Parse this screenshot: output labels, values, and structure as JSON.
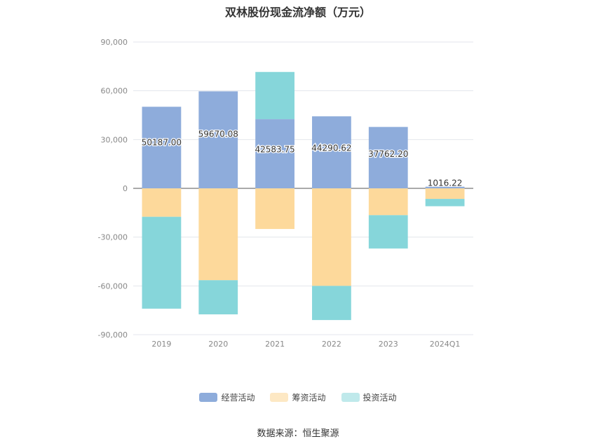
{
  "chart_data": {
    "type": "bar",
    "stacked": true,
    "title": "双林股份现金流净额（万元）",
    "categories": [
      "2019",
      "2020",
      "2021",
      "2022",
      "2023",
      "2024Q1"
    ],
    "series": [
      {
        "name": "经营活动",
        "color": "#8eacdb",
        "values": [
          50187.0,
          59670.08,
          42583.75,
          44290.62,
          37762.2,
          1016.22
        ],
        "labels": [
          "50187.00",
          "59670.08",
          "42583.75",
          "44290.62",
          "37762.20",
          "1016.22"
        ]
      },
      {
        "name": "筹资活动",
        "color": "#fdd99b",
        "values": [
          -17500,
          -56500,
          -25000,
          -60000,
          -16500,
          -6500
        ]
      },
      {
        "name": "投资活动",
        "color": "#86d6da",
        "values": [
          -56500,
          -21000,
          29000,
          -21000,
          -20500,
          -4500
        ]
      }
    ],
    "yticks": [
      90000,
      60000,
      30000,
      0,
      -30000,
      -60000,
      -90000
    ],
    "ytick_labels": [
      "90,000",
      "60,000",
      "30,000",
      "0",
      "-30,000",
      "-60,000",
      "-90,000"
    ],
    "ylim": [
      -90000,
      90000
    ],
    "xlabel": "",
    "ylabel": "",
    "grid": true,
    "legend_position": "bottom"
  },
  "source_text": "数据来源：恒生聚源"
}
